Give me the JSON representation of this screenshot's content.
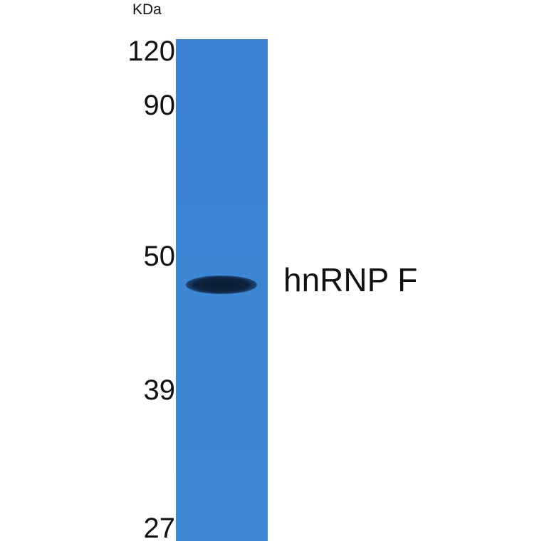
{
  "unit_label": "KDa",
  "markers": [
    "120",
    "90",
    "50",
    "39",
    "27"
  ],
  "band_label": "hnRNP F",
  "colors": {
    "lane": "#3b82d2",
    "band": "#0f2544"
  }
}
